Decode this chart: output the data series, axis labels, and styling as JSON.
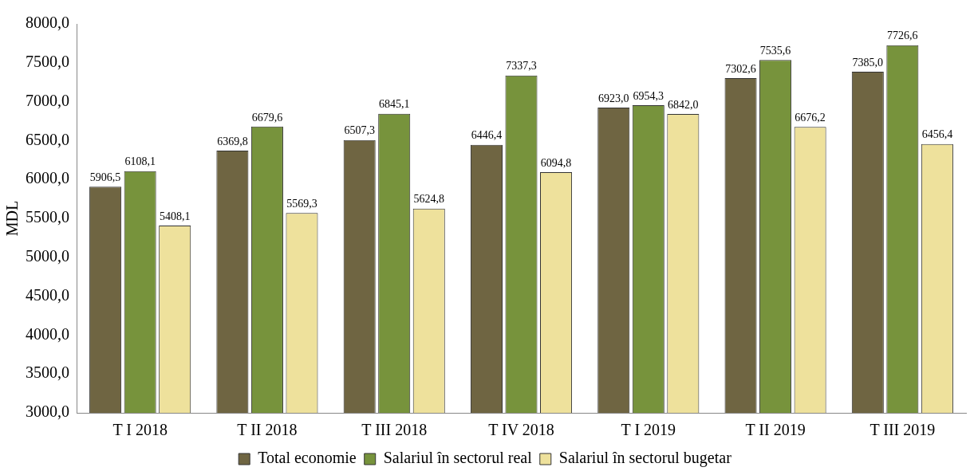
{
  "chart_data": {
    "type": "bar",
    "ylabel": "MDL",
    "categories": [
      "T I 2018",
      "T II 2018",
      "T III 2018",
      "T IV 2018",
      "T I 2019",
      "T II 2019",
      "T III 2019"
    ],
    "series": [
      {
        "name": "Total economie",
        "color": "#6f6542",
        "values": [
          5906.5,
          6369.8,
          6507.3,
          6446.4,
          6923.0,
          7302.6,
          7385.0
        ],
        "value_labels": [
          "5906,5",
          "6369,8",
          "6507,3",
          "6446,4",
          "6923,0",
          "7302,6",
          "7385,0"
        ]
      },
      {
        "name": "Salariul în sectorul real",
        "color": "#77933c",
        "values": [
          6108.1,
          6679.6,
          6845.1,
          7337.3,
          6954.3,
          7535.6,
          7726.6
        ],
        "value_labels": [
          "6108,1",
          "6679,6",
          "6845,1",
          "7337,3",
          "6954,3",
          "7535,6",
          "7726,6"
        ]
      },
      {
        "name": "Salariul în sectorul bugetar",
        "color": "#eee19c",
        "values": [
          5408.1,
          5569.3,
          5624.8,
          6094.8,
          6842.0,
          6676.2,
          6456.4
        ],
        "value_labels": [
          "5408,1",
          "5569,3",
          "5624,8",
          "6094,8",
          "6842,0",
          "6676,2",
          "6456,4"
        ]
      }
    ],
    "ylim": [
      3000,
      8000
    ],
    "yticks": [
      {
        "value": 3000,
        "label": "3000,0"
      },
      {
        "value": 3500,
        "label": "3500,0"
      },
      {
        "value": 4000,
        "label": "4000,0"
      },
      {
        "value": 4500,
        "label": "4500,0"
      },
      {
        "value": 5000,
        "label": "5000,0"
      },
      {
        "value": 5500,
        "label": "5500,0"
      },
      {
        "value": 6000,
        "label": "6000,0"
      },
      {
        "value": 6500,
        "label": "6500,0"
      },
      {
        "value": 7000,
        "label": "7000,0"
      },
      {
        "value": 7500,
        "label": "7500,0"
      },
      {
        "value": 8000,
        "label": "8000,0"
      }
    ],
    "grid": false,
    "legend": "bottom"
  }
}
